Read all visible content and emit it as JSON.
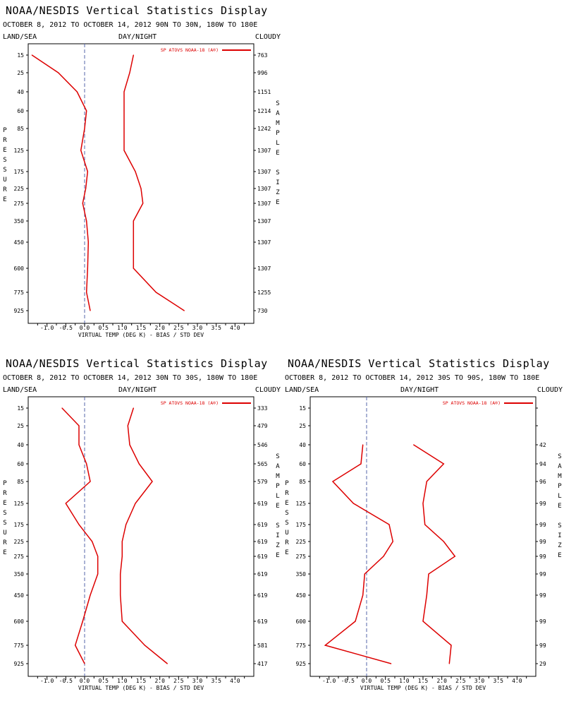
{
  "charts": [
    {
      "title": "NOAA/NESDIS Vertical Statistics Display",
      "subtitle": "OCTOBER 8, 2012 TO OCTOBER 14, 2012 90N TO 30N, 180W TO 180E",
      "header_left": "LAND/SEA",
      "header_center": "DAY/NIGHT",
      "header_right": "CLOUDY"
    },
    {
      "title": "NOAA/NESDIS Vertical Statistics Display",
      "subtitle": "OCTOBER 8, 2012 TO OCTOBER 14, 2012 30N TO 30S, 180W TO 180E",
      "header_left": "LAND/SEA",
      "header_center": "DAY/NIGHT",
      "header_right": "CLOUDY"
    },
    {
      "title": "NOAA/NESDIS Vertical Statistics Display",
      "subtitle": "OCTOBER 8, 2012 TO OCTOBER 14, 2012 30S TO 90S, 180W TO 180E",
      "header_left": "LAND/SEA",
      "header_center": "DAY/NIGHT",
      "header_right": "CLOUDY"
    }
  ],
  "chart_data": [
    {
      "type": "line",
      "title": "NOAA/NESDIS Vertical Statistics Display",
      "xlabel": "VIRTUAL TEMP (DEG K) - BIAS / STD DEV",
      "ylabel": "PRESSURE",
      "y2label": "SAMPLE SIZE",
      "legend": "SP ATOVS NOAA-18 (A®)",
      "legend_position": "top-right",
      "line_color": "#dd0000",
      "xlim": [
        -1.5,
        4.5
      ],
      "xticks": [
        "-1.0",
        "-0.5",
        "0.0",
        "0.5",
        "1.0",
        "1.5",
        "2.0",
        "2.5",
        "3.0",
        "3.5",
        "4.0"
      ],
      "pressure_levels": [
        "15",
        "25",
        "40",
        "60",
        "85",
        "125",
        "175",
        "225",
        "275",
        "350",
        "450",
        "600",
        "775",
        "925"
      ],
      "sample_size": [
        "763",
        "996",
        "1151",
        "1214",
        "1242",
        "1307",
        "1307",
        "1307",
        "1307",
        "1307",
        "1307",
        "1307",
        "1255",
        "730"
      ],
      "series": [
        {
          "name": "BIAS",
          "values": [
            -1.4,
            -0.7,
            -0.2,
            0.05,
            0.0,
            -0.1,
            0.08,
            0.03,
            -0.05,
            0.05,
            0.1,
            0.08,
            0.05,
            0.15
          ]
        },
        {
          "name": "STD DEV",
          "values": [
            1.3,
            1.2,
            1.05,
            1.05,
            1.05,
            1.05,
            1.35,
            1.5,
            1.55,
            1.3,
            1.3,
            1.3,
            1.9,
            2.65
          ]
        }
      ]
    },
    {
      "type": "line",
      "title": "NOAA/NESDIS Vertical Statistics Display",
      "xlabel": "VIRTUAL TEMP (DEG K) - BIAS / STD DEV",
      "ylabel": "PRESSURE",
      "y2label": "SAMPLE SIZE",
      "legend": "SP ATOVS NOAA-18 (A®)",
      "legend_position": "top-right",
      "line_color": "#dd0000",
      "xlim": [
        -1.5,
        4.5
      ],
      "xticks": [
        "-1.0",
        "-0.5",
        "0.0",
        "0.5",
        "1.0",
        "1.5",
        "2.0",
        "2.5",
        "3.0",
        "3.5",
        "4.0"
      ],
      "pressure_levels": [
        "15",
        "25",
        "40",
        "60",
        "85",
        "125",
        "175",
        "225",
        "275",
        "350",
        "450",
        "600",
        "775",
        "925"
      ],
      "sample_size": [
        "333",
        "479",
        "546",
        "565",
        "579",
        "619",
        "619",
        "619",
        "619",
        "619",
        "619",
        "619",
        "581",
        "417"
      ],
      "series": [
        {
          "name": "BIAS",
          "values": [
            -0.6,
            -0.15,
            -0.15,
            0.05,
            0.15,
            -0.5,
            -0.15,
            0.2,
            0.35,
            0.35,
            0.15,
            -0.05,
            -0.25,
            0.0
          ]
        },
        {
          "name": "STD DEV",
          "values": [
            1.3,
            1.15,
            1.2,
            1.45,
            1.8,
            1.35,
            1.1,
            1.0,
            1.0,
            0.95,
            0.95,
            1.0,
            1.6,
            2.2
          ]
        }
      ]
    },
    {
      "type": "line",
      "title": "NOAA/NESDIS Vertical Statistics Display",
      "xlabel": "VIRTUAL TEMP (DEG K) - BIAS / STD DEV",
      "ylabel": "PRESSURE",
      "y2label": "SAMPLE SIZE",
      "legend": "SP ATOVS NOAA-18 (A®)",
      "legend_position": "top-right",
      "line_color": "#dd0000",
      "xlim": [
        -1.5,
        4.5
      ],
      "xticks": [
        "-1.0",
        "-0.5",
        "0.0",
        "0.5",
        "1.0",
        "1.5",
        "2.0",
        "2.5",
        "3.0",
        "3.5",
        "4.0"
      ],
      "pressure_levels": [
        "15",
        "25",
        "40",
        "60",
        "85",
        "125",
        "175",
        "225",
        "275",
        "350",
        "450",
        "600",
        "775",
        "925"
      ],
      "sample_size": [
        "",
        "",
        "42",
        "94",
        "96",
        "99",
        "99",
        "99",
        "99",
        "99",
        "99",
        "99",
        "99",
        "29"
      ],
      "series": [
        {
          "name": "BIAS",
          "values": [
            null,
            null,
            -0.1,
            -0.15,
            -0.9,
            -0.35,
            0.6,
            0.7,
            0.45,
            -0.05,
            -0.1,
            -0.3,
            -1.1,
            0.65
          ]
        },
        {
          "name": "STD DEV",
          "values": [
            null,
            null,
            1.25,
            2.05,
            1.6,
            1.5,
            1.55,
            2.05,
            2.35,
            1.65,
            1.6,
            1.5,
            2.25,
            2.2
          ]
        }
      ]
    }
  ]
}
